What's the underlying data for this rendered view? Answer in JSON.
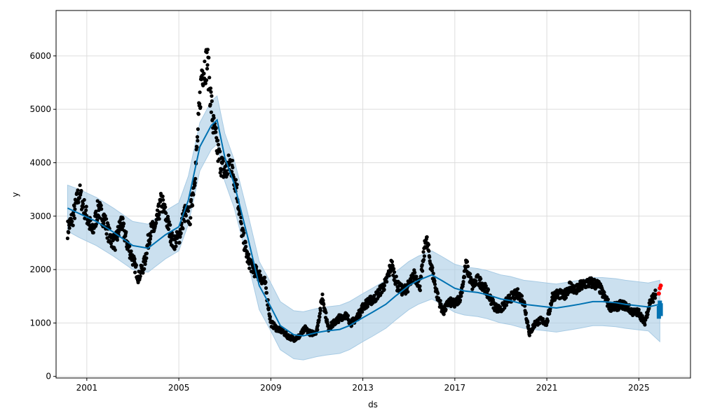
{
  "chart_data": {
    "type": "scatter",
    "xlabel": "ds",
    "ylabel": "y",
    "x_axis": "date",
    "xlim": [
      "1999-09-01",
      "2027-04-01"
    ],
    "ylim": [
      -30,
      6850
    ],
    "x_ticks": [
      "2001",
      "2005",
      "2009",
      "2013",
      "2017",
      "2021",
      "2025"
    ],
    "y_ticks": [
      0,
      1000,
      2000,
      3000,
      4000,
      5000,
      6000
    ],
    "grid": true,
    "colors": {
      "observed": "#000000",
      "trend": "#0072B2",
      "interval": "#a8cbe4",
      "test_actual": "#ff0000",
      "forecast_points": "#0072B2"
    },
    "series": [
      {
        "kind": "observed-points",
        "x": [
          "2000-03-01",
          "2000-06-01",
          "2000-09-01",
          "2001-01-01",
          "2001-04-01",
          "2001-07-01",
          "2001-10-01",
          "2002-01-01",
          "2002-04-01",
          "2002-07-01",
          "2002-10-01",
          "2003-01-01",
          "2003-04-01",
          "2003-07-01",
          "2003-10-01",
          "2004-01-01",
          "2004-04-01",
          "2004-07-01",
          "2004-10-01",
          "2005-01-01",
          "2005-04-01",
          "2005-07-01",
          "2005-10-01",
          "2006-01-01",
          "2006-04-01",
          "2006-07-01",
          "2006-10-01",
          "2007-01-01",
          "2007-04-01",
          "2007-07-01",
          "2007-10-01",
          "2008-01-01",
          "2008-04-01",
          "2008-07-01",
          "2008-10-01",
          "2009-01-01",
          "2009-04-01",
          "2009-07-01",
          "2009-10-01",
          "2010-01-01",
          "2010-04-01",
          "2010-07-01",
          "2010-10-01",
          "2011-01-01",
          "2011-04-01",
          "2011-07-01",
          "2011-10-01",
          "2012-01-01",
          "2012-04-01",
          "2012-07-01",
          "2012-10-01",
          "2013-01-01",
          "2013-04-01",
          "2013-07-01",
          "2013-10-01",
          "2014-01-01",
          "2014-04-01",
          "2014-07-01",
          "2014-10-01",
          "2015-01-01",
          "2015-04-01",
          "2015-07-01",
          "2015-10-01",
          "2016-01-01",
          "2016-04-01",
          "2016-07-01",
          "2016-10-01",
          "2017-01-01",
          "2017-04-01",
          "2017-07-01",
          "2017-10-01",
          "2018-01-01",
          "2018-04-01",
          "2018-07-01",
          "2018-10-01",
          "2019-01-01",
          "2019-04-01",
          "2019-07-01",
          "2019-10-01",
          "2020-01-01",
          "2020-04-01",
          "2020-07-01",
          "2020-10-01",
          "2021-01-01",
          "2021-04-01",
          "2021-07-01",
          "2021-10-01",
          "2022-01-01",
          "2022-04-01",
          "2022-07-01",
          "2022-10-01",
          "2023-01-01",
          "2023-04-01",
          "2023-07-01",
          "2023-10-01",
          "2024-01-01",
          "2024-04-01",
          "2024-07-01",
          "2024-10-01",
          "2025-01-01",
          "2025-04-01",
          "2025-07-01",
          "2025-10-01"
        ],
        "y": [
          2750,
          3000,
          3450,
          3000,
          2700,
          3150,
          2950,
          2600,
          2500,
          2900,
          2500,
          2200,
          1850,
          2100,
          2700,
          2800,
          3300,
          2900,
          2500,
          2600,
          3050,
          3000,
          4000,
          5700,
          5900,
          4700,
          4100,
          3800,
          4000,
          3600,
          2700,
          2200,
          2000,
          1900,
          1750,
          1000,
          900,
          850,
          750,
          700,
          750,
          900,
          800,
          850,
          1500,
          900,
          1000,
          1100,
          1150,
          1000,
          1100,
          1300,
          1400,
          1450,
          1600,
          1750,
          2100,
          1700,
          1600,
          1700,
          1900,
          1700,
          2600,
          2000,
          1500,
          1200,
          1400,
          1350,
          1500,
          2100,
          1700,
          1800,
          1700,
          1500,
          1300,
          1250,
          1400,
          1500,
          1550,
          1400,
          800,
          1000,
          1050,
          1000,
          1500,
          1550,
          1500,
          1700,
          1600,
          1700,
          1750,
          1750,
          1700,
          1500,
          1300,
          1300,
          1350,
          1300,
          1200,
          1200,
          1000,
          1400,
          1550
        ]
      },
      {
        "kind": "trend-line",
        "x": [
          "2000-03-01",
          "2000-09-01",
          "2001-06-01",
          "2002-03-01",
          "2003-01-01",
          "2003-09-01",
          "2004-06-01",
          "2005-01-01",
          "2005-06-01",
          "2005-12-01",
          "2006-06-01",
          "2006-09-01",
          "2007-01-01",
          "2007-06-01",
          "2008-01-01",
          "2008-07-01",
          "2009-01-01",
          "2009-06-01",
          "2010-01-01",
          "2010-06-01",
          "2011-01-01",
          "2011-06-01",
          "2012-01-01",
          "2012-06-01",
          "2013-01-01",
          "2013-06-01",
          "2014-01-01",
          "2014-06-01",
          "2015-01-01",
          "2015-06-01",
          "2016-01-01",
          "2016-06-01",
          "2017-01-01",
          "2017-06-01",
          "2018-01-01",
          "2018-06-01",
          "2019-01-01",
          "2019-06-01",
          "2020-01-01",
          "2020-06-01",
          "2021-01-01",
          "2021-06-01",
          "2022-01-01",
          "2022-06-01",
          "2023-01-01",
          "2023-06-01",
          "2024-01-01",
          "2024-06-01",
          "2025-01-01",
          "2025-06-01",
          "2025-12-01"
        ],
        "y": [
          3150,
          3050,
          2900,
          2700,
          2450,
          2400,
          2650,
          2800,
          3300,
          4300,
          4700,
          4800,
          4100,
          3600,
          2600,
          1700,
          1300,
          950,
          780,
          760,
          820,
          850,
          880,
          950,
          1100,
          1200,
          1350,
          1500,
          1700,
          1800,
          1900,
          1800,
          1650,
          1600,
          1570,
          1530,
          1450,
          1420,
          1350,
          1330,
          1300,
          1280,
          1320,
          1350,
          1400,
          1400,
          1380,
          1350,
          1320,
          1300,
          1350
        ]
      },
      {
        "kind": "interval-band",
        "x": [
          "2000-03-01",
          "2000-09-01",
          "2001-06-01",
          "2002-03-01",
          "2003-01-01",
          "2003-09-01",
          "2004-06-01",
          "2005-01-01",
          "2005-06-01",
          "2005-12-01",
          "2006-06-01",
          "2006-09-01",
          "2007-01-01",
          "2007-06-01",
          "2008-01-01",
          "2008-07-01",
          "2009-01-01",
          "2009-06-01",
          "2010-01-01",
          "2010-06-01",
          "2011-01-01",
          "2011-06-01",
          "2012-01-01",
          "2012-06-01",
          "2013-01-01",
          "2013-06-01",
          "2014-01-01",
          "2014-06-01",
          "2015-01-01",
          "2015-06-01",
          "2016-01-01",
          "2016-06-01",
          "2017-01-01",
          "2017-06-01",
          "2018-01-01",
          "2018-06-01",
          "2019-01-01",
          "2019-06-01",
          "2020-01-01",
          "2020-06-01",
          "2021-01-01",
          "2021-06-01",
          "2022-01-01",
          "2022-06-01",
          "2023-01-01",
          "2023-06-01",
          "2024-01-01",
          "2024-06-01",
          "2025-01-01",
          "2025-06-01",
          "2025-12-01"
        ],
        "upper": [
          3580,
          3500,
          3350,
          3150,
          2900,
          2850,
          3100,
          3250,
          3750,
          4750,
          5150,
          5250,
          4550,
          4050,
          3050,
          2150,
          1750,
          1400,
          1230,
          1210,
          1270,
          1300,
          1330,
          1400,
          1550,
          1650,
          1800,
          1950,
          2150,
          2250,
          2350,
          2250,
          2100,
          2050,
          2020,
          1980,
          1900,
          1870,
          1800,
          1780,
          1750,
          1730,
          1770,
          1800,
          1850,
          1850,
          1830,
          1800,
          1770,
          1750,
          1800
        ],
        "lower": [
          2720,
          2600,
          2450,
          2250,
          2000,
          1950,
          2200,
          2350,
          2850,
          3850,
          4250,
          4350,
          3650,
          3150,
          2150,
          1250,
          850,
          500,
          330,
          310,
          370,
          400,
          430,
          500,
          650,
          750,
          900,
          1050,
          1250,
          1350,
          1450,
          1350,
          1200,
          1150,
          1120,
          1080,
          1000,
          970,
          900,
          880,
          850,
          830,
          870,
          900,
          950,
          950,
          930,
          900,
          870,
          850,
          650
        ]
      },
      {
        "kind": "test-actual-points",
        "x": [
          "2025-11-15",
          "2025-12-01",
          "2025-12-15"
        ],
        "y": [
          1550,
          1650,
          1700
        ]
      },
      {
        "kind": "forecast-points",
        "x": [
          "2025-11-15",
          "2025-12-01",
          "2025-12-15"
        ],
        "y": [
          1200,
          1300,
          1250
        ]
      }
    ]
  }
}
